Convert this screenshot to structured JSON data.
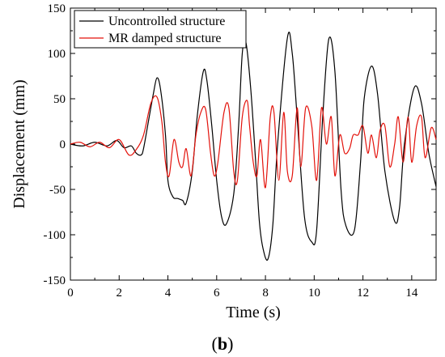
{
  "chart_data": {
    "type": "line",
    "xlabel": "Time (s)",
    "ylabel": "Displacement (mm)",
    "xlim": [
      0,
      15
    ],
    "ylim": [
      -150,
      150
    ],
    "x_ticks": [
      0,
      2,
      4,
      6,
      8,
      10,
      12,
      14
    ],
    "y_ticks": [
      150,
      100,
      50,
      0,
      -50,
      -100,
      -150
    ],
    "grid": false,
    "legend_position": "top-left",
    "caption": {
      "open": "(",
      "letter": "b",
      "close": ")"
    },
    "series": [
      {
        "name": "Uncontrolled structure",
        "color": "#000000",
        "x": [
          0,
          0.5,
          1.0,
          1.5,
          1.9,
          2.2,
          2.5,
          2.7,
          2.9,
          3.0,
          3.2,
          3.4,
          3.55,
          3.7,
          3.9,
          4.0,
          4.2,
          4.4,
          4.6,
          4.75,
          5.0,
          5.2,
          5.45,
          5.6,
          5.8,
          6.0,
          6.2,
          6.4,
          6.7,
          6.9,
          7.05,
          7.2,
          7.4,
          7.6,
          7.75,
          7.9,
          8.1,
          8.3,
          8.5,
          8.9,
          9.1,
          9.3,
          9.6,
          9.9,
          10.1,
          10.35,
          10.6,
          10.85,
          11.1,
          11.3,
          11.65,
          11.9,
          12.05,
          12.35,
          12.6,
          12.9,
          13.3,
          13.5,
          13.7,
          14.1,
          14.4,
          14.7,
          15.0
        ],
        "y": [
          0,
          -2,
          2,
          -2,
          4,
          -4,
          -2,
          -10,
          -12,
          -5,
          25,
          55,
          73,
          60,
          10,
          -40,
          -58,
          -60,
          -62,
          -65,
          -30,
          30,
          80,
          70,
          20,
          -40,
          -80,
          -88,
          -55,
          20,
          100,
          112,
          60,
          -20,
          -85,
          -115,
          -127,
          -90,
          0,
          117,
          100,
          30,
          -80,
          -108,
          -95,
          30,
          116,
          80,
          -50,
          -90,
          -95,
          -20,
          50,
          86,
          55,
          -30,
          -85,
          -70,
          0,
          62,
          45,
          -10,
          -47
        ]
      },
      {
        "name": "MR damped structure",
        "color": "#e3120b",
        "x": [
          0,
          0.4,
          0.8,
          1.2,
          1.6,
          2.0,
          2.4,
          2.7,
          3.0,
          3.3,
          3.55,
          3.75,
          3.9,
          4.05,
          4.25,
          4.45,
          4.6,
          4.75,
          4.95,
          5.15,
          5.35,
          5.55,
          5.75,
          5.9,
          6.05,
          6.3,
          6.5,
          6.7,
          6.85,
          7.05,
          7.25,
          7.35,
          7.5,
          7.65,
          7.8,
          8.0,
          8.2,
          8.35,
          8.55,
          8.75,
          8.9,
          9.1,
          9.3,
          9.45,
          9.65,
          9.9,
          10.1,
          10.3,
          10.5,
          10.7,
          10.85,
          11.05,
          11.25,
          11.45,
          11.6,
          11.8,
          12.0,
          12.2,
          12.35,
          12.55,
          12.7,
          12.9,
          13.1,
          13.3,
          13.45,
          13.65,
          13.85,
          14.0,
          14.2,
          14.4,
          14.55,
          14.8,
          15.0
        ],
        "y": [
          0,
          2,
          -3,
          2,
          -4,
          5,
          -12,
          -6,
          10,
          45,
          52,
          25,
          -20,
          -35,
          5,
          -20,
          -25,
          -5,
          -35,
          10,
          35,
          38,
          -10,
          -35,
          -20,
          35,
          40,
          -30,
          -40,
          30,
          48,
          20,
          -20,
          -35,
          5,
          -48,
          30,
          35,
          -40,
          35,
          -30,
          -35,
          40,
          -25,
          40,
          20,
          -40,
          40,
          0,
          30,
          -35,
          10,
          -10,
          -5,
          10,
          10,
          20,
          -10,
          10,
          -15,
          15,
          20,
          -25,
          0,
          30,
          -20,
          30,
          -20,
          20,
          30,
          -15,
          18,
          5
        ]
      }
    ]
  }
}
